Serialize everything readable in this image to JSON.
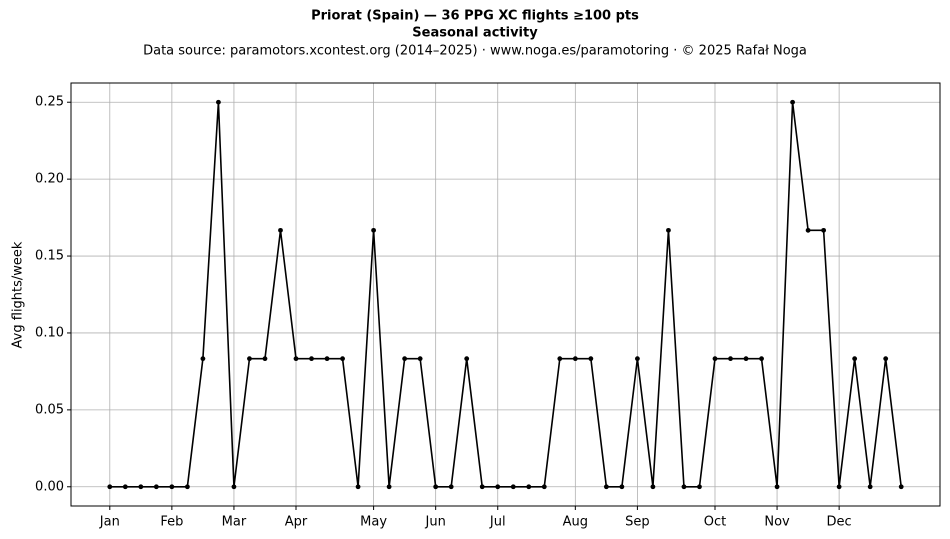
{
  "chart_data": {
    "type": "line",
    "title": "Priorat (Spain)  —  36 PPG XC flights ≥100 pts",
    "subtitle": "Seasonal activity",
    "source": "Data source: paramotors.xcontest.org (2014–2025)  ·  www.noga.es/paramotoring  ·  © 2025 Rafał Noga",
    "y_label": "Avg flights/week",
    "x": [
      1,
      2,
      3,
      4,
      5,
      6,
      7,
      8,
      9,
      10,
      11,
      12,
      13,
      14,
      15,
      16,
      17,
      18,
      19,
      20,
      21,
      22,
      23,
      24,
      25,
      26,
      27,
      28,
      29,
      30,
      31,
      32,
      33,
      34,
      35,
      36,
      37,
      38,
      39,
      40,
      41,
      42,
      43,
      44,
      45,
      46,
      47,
      48,
      49,
      50,
      51,
      52
    ],
    "series": [
      {
        "color": "#000000",
        "values": [
          0,
          0,
          0,
          0,
          0,
          0,
          0.0833,
          0.25,
          0,
          0.0833,
          0.0833,
          0.1667,
          0.0833,
          0.0833,
          0.0833,
          0.0833,
          0,
          0.1667,
          0,
          0.0833,
          0.0833,
          0,
          0,
          0.0833,
          0,
          0,
          0,
          0,
          0,
          0.0833,
          0.0833,
          0.0833,
          0,
          0,
          0.0833,
          0,
          0.1667,
          0,
          0,
          0.0833,
          0.0833,
          0.0833,
          0.0833,
          0,
          0.25,
          0.1667,
          0.1667,
          0,
          0.0833,
          0,
          0.0833,
          0
        ]
      }
    ],
    "xlim": [
      -1.5,
      54.5
    ],
    "ylim": [
      -0.0125,
      0.2625
    ],
    "xticks": [
      {
        "value": 1,
        "label": "Jan"
      },
      {
        "value": 5,
        "label": "Feb"
      },
      {
        "value": 9,
        "label": "Mar"
      },
      {
        "value": 13,
        "label": "Apr"
      },
      {
        "value": 18,
        "label": "May"
      },
      {
        "value": 22,
        "label": "Jun"
      },
      {
        "value": 26,
        "label": "Jul"
      },
      {
        "value": 31,
        "label": "Aug"
      },
      {
        "value": 35,
        "label": "Sep"
      },
      {
        "value": 40,
        "label": "Oct"
      },
      {
        "value": 44,
        "label": "Nov"
      },
      {
        "value": 48,
        "label": "Dec"
      }
    ],
    "yticks": [
      {
        "value": 0,
        "label": "0.00"
      },
      {
        "value": 0.05,
        "label": "0.05"
      },
      {
        "value": 0.1,
        "label": "0.10"
      },
      {
        "value": 0.15,
        "label": "0.15"
      },
      {
        "value": 0.2,
        "label": "0.20"
      },
      {
        "value": 0.25,
        "label": "0.25"
      }
    ],
    "grid": true
  }
}
